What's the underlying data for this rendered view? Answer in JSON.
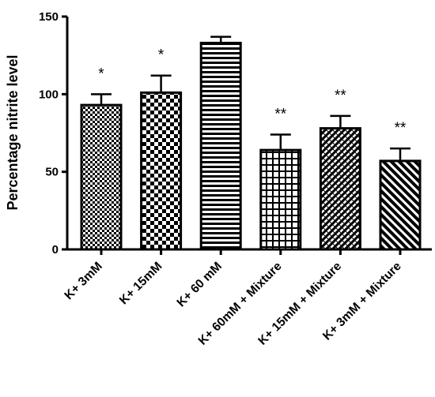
{
  "chart_data": {
    "type": "bar",
    "title": "",
    "xlabel": "",
    "ylabel": "Percentage nitrite level",
    "ylim": [
      0,
      150
    ],
    "yticks": [
      0,
      50,
      100,
      150
    ],
    "grid": false,
    "categories": [
      "K+ 3mM",
      "K+ 15mM",
      "K+ 60 mM",
      "K+ 60mM + Mixture",
      "K+ 15mM + Mixture",
      "K+ 3mM + Mixture"
    ],
    "values": [
      93,
      101,
      133,
      64,
      78,
      57
    ],
    "errors": [
      7,
      11,
      4,
      10,
      8,
      8
    ],
    "significance": [
      "*",
      "*",
      "",
      "**",
      "**",
      "**"
    ],
    "bar_patterns": [
      "checker-dense",
      "checker",
      "horizontal-lines",
      "grid",
      "diagonal-cross",
      "diagonal-stripes"
    ]
  }
}
